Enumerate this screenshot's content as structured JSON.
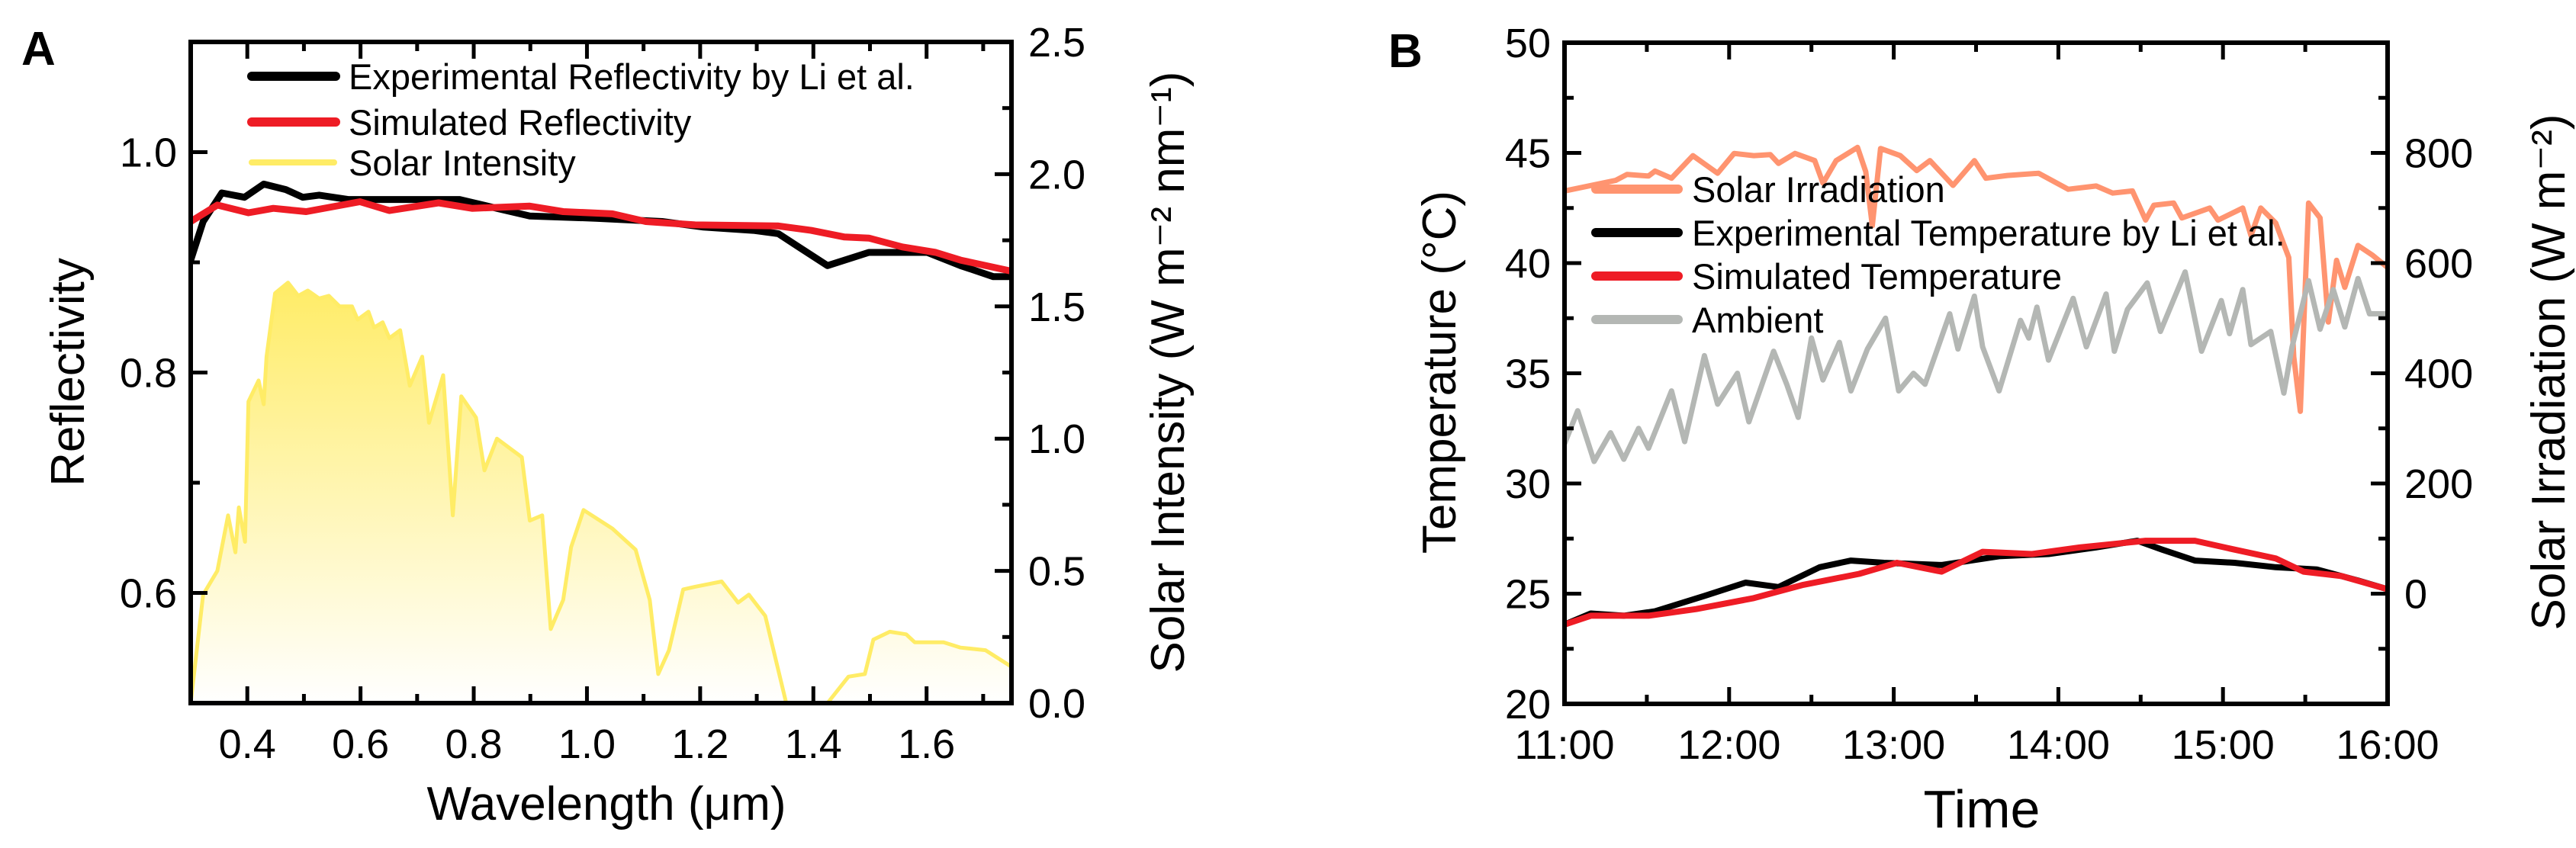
{
  "colors": {
    "experimental": "#000000",
    "simulated": "#EE1C25",
    "solar_intensity": "#FFEC66",
    "solar_irradiation": "#FF9470",
    "ambient": "#B4B7B4"
  },
  "chart_data": [
    {
      "panel": "A",
      "type": "line",
      "xlabel": "Wavelength (μm)",
      "ylabel": "Reflectivity",
      "y2label": "Solar Intensity (W m⁻² nm⁻¹)",
      "xlim": [
        0.3,
        1.75
      ],
      "ylim": [
        0.5,
        1.1
      ],
      "y2lim": [
        0,
        2.5
      ],
      "xticks": [
        0.4,
        0.6,
        0.8,
        1.0,
        1.2,
        1.4,
        1.6
      ],
      "xtick_labels": [
        "0.4",
        "0.6",
        "0.8",
        "1.0",
        "1.2",
        "1.4",
        "1.6"
      ],
      "yticks": [
        0.6,
        0.8,
        1.0
      ],
      "ytick_labels": [
        "0.6",
        "0.8",
        "1.0"
      ],
      "y2ticks": [
        0,
        0.5,
        1.0,
        1.5,
        2.0,
        2.5
      ],
      "y2tick_labels": [
        "0.0",
        "0.5",
        "1.0",
        "1.5",
        "2.0",
        "2.5"
      ],
      "legend_position": "top-left",
      "series": [
        {
          "name": "Experimental Reflectivity by Li et al.",
          "axis": "left",
          "x": [
            0.3,
            0.322,
            0.355,
            0.395,
            0.429,
            0.468,
            0.498,
            0.527,
            0.578,
            0.651,
            0.775,
            0.841,
            0.899,
            1.016,
            1.133,
            1.206,
            1.294,
            1.338,
            1.374,
            1.425,
            1.498,
            1.601,
            1.66,
            1.718,
            1.75
          ],
          "y": [
            0.902,
            0.937,
            0.963,
            0.959,
            0.971,
            0.966,
            0.959,
            0.961,
            0.957,
            0.957,
            0.957,
            0.949,
            0.942,
            0.94,
            0.937,
            0.932,
            0.929,
            0.926,
            0.914,
            0.897,
            0.909,
            0.909,
            0.897,
            0.887,
            0.887
          ]
        },
        {
          "name": "Simulated Reflectivity",
          "axis": "left",
          "x": [
            0.3,
            0.347,
            0.402,
            0.446,
            0.504,
            0.599,
            0.651,
            0.738,
            0.797,
            0.899,
            0.958,
            1.045,
            1.104,
            1.191,
            1.338,
            1.396,
            1.455,
            1.498,
            1.557,
            1.616,
            1.66,
            1.75
          ],
          "y": [
            0.937,
            0.952,
            0.945,
            0.949,
            0.946,
            0.955,
            0.947,
            0.954,
            0.949,
            0.951,
            0.946,
            0.944,
            0.937,
            0.934,
            0.933,
            0.929,
            0.923,
            0.922,
            0.914,
            0.909,
            0.902,
            0.892
          ]
        },
        {
          "name": "Solar Intensity",
          "axis": "right",
          "fill": true,
          "x": [
            0.3,
            0.322,
            0.347,
            0.366,
            0.379,
            0.385,
            0.396,
            0.402,
            0.42,
            0.429,
            0.434,
            0.449,
            0.472,
            0.49,
            0.507,
            0.527,
            0.544,
            0.563,
            0.585,
            0.595,
            0.614,
            0.624,
            0.639,
            0.651,
            0.67,
            0.687,
            0.709,
            0.721,
            0.746,
            0.763,
            0.778,
            0.804,
            0.819,
            0.841,
            0.885,
            0.899,
            0.921,
            0.936,
            0.958,
            0.972,
            0.994,
            1.045,
            1.086,
            1.111,
            1.126,
            1.145,
            1.17,
            1.191,
            1.238,
            1.267,
            1.286,
            1.315,
            1.352,
            1.425,
            1.462,
            1.491,
            1.506,
            1.535,
            1.564,
            1.579,
            1.63,
            1.66,
            1.704,
            1.748
          ],
          "y": [
            0,
            0.41,
            0.5,
            0.71,
            0.57,
            0.74,
            0.61,
            1.14,
            1.22,
            1.13,
            1.31,
            1.55,
            1.59,
            1.54,
            1.56,
            1.53,
            1.54,
            1.5,
            1.5,
            1.45,
            1.48,
            1.42,
            1.44,
            1.38,
            1.41,
            1.2,
            1.31,
            1.06,
            1.24,
            0.71,
            1.16,
            1.08,
            0.88,
            1.0,
            0.93,
            0.69,
            0.71,
            0.28,
            0.39,
            0.59,
            0.73,
            0.66,
            0.58,
            0.39,
            0.11,
            0.2,
            0.43,
            0.44,
            0.46,
            0.38,
            0.41,
            0.33,
            0,
            0,
            0.1,
            0.11,
            0.24,
            0.27,
            0.26,
            0.23,
            0.23,
            0.21,
            0.2,
            0.14
          ]
        }
      ]
    },
    {
      "panel": "B",
      "type": "line",
      "xlabel": "Time",
      "ylabel": "Temperature (°C)",
      "y2label": "Solar Irradiation (W m⁻²)",
      "xlim": [
        11,
        16
      ],
      "ylim": [
        20,
        50
      ],
      "y2lim": [
        -200,
        1000
      ],
      "xticks": [
        11,
        12,
        13,
        14,
        15,
        16
      ],
      "xtick_labels": [
        "11:00",
        "12:00",
        "13:00",
        "14:00",
        "15:00",
        "16:00"
      ],
      "yticks": [
        20,
        25,
        30,
        35,
        40,
        45,
        50
      ],
      "ytick_labels": [
        "20",
        "25",
        "30",
        "35",
        "40",
        "45",
        "50"
      ],
      "y2ticks": [
        0,
        200,
        400,
        600,
        800
      ],
      "y2tick_labels": [
        "0",
        "200",
        "400",
        "600",
        "800"
      ],
      "legend_position": "center-left",
      "series": [
        {
          "name": "Solar Irradiation",
          "axis": "right",
          "x": [
            11.0,
            11.31,
            11.38,
            11.51,
            11.55,
            11.65,
            11.78,
            11.93,
            12.03,
            12.15,
            12.25,
            12.3,
            12.4,
            12.52,
            12.57,
            12.65,
            12.78,
            12.83,
            12.87,
            12.92,
            13.04,
            13.14,
            13.22,
            13.36,
            13.49,
            13.56,
            13.69,
            13.88,
            14.06,
            14.23,
            14.33,
            14.45,
            14.53,
            14.58,
            14.7,
            14.75,
            14.92,
            14.97,
            15.12,
            15.17,
            15.23,
            15.32,
            15.4,
            15.43,
            15.47,
            15.52,
            15.59,
            15.64,
            15.69,
            15.74,
            15.82,
            15.91,
            16.0
          ],
          "y": [
            731,
            750,
            761,
            758,
            767,
            754,
            795,
            763,
            799,
            795,
            797,
            781,
            799,
            786,
            745,
            786,
            810,
            766,
            668,
            808,
            795,
            768,
            786,
            741,
            786,
            754,
            759,
            763,
            734,
            740,
            727,
            731,
            678,
            705,
            709,
            682,
            700,
            678,
            700,
            650,
            700,
            673,
            610,
            430,
            331,
            709,
            682,
            493,
            605,
            556,
            632,
            614,
            592
          ]
        },
        {
          "name": "Experimental Temperature by Li et al.",
          "axis": "left",
          "x": [
            11.0,
            11.16,
            11.36,
            11.55,
            11.85,
            12.1,
            12.3,
            12.55,
            12.74,
            12.94,
            13.29,
            13.64,
            13.94,
            14.23,
            14.48,
            14.63,
            14.83,
            15.07,
            15.32,
            15.57,
            15.82,
            16.0
          ],
          "y": [
            23.6,
            24.1,
            24.0,
            24.2,
            24.9,
            25.5,
            25.3,
            26.2,
            26.5,
            26.4,
            26.3,
            26.7,
            26.8,
            27.1,
            27.4,
            27.0,
            26.5,
            26.4,
            26.2,
            26.1,
            25.6,
            25.2
          ]
        },
        {
          "name": "Simulated Temperature",
          "axis": "left",
          "x": [
            11.0,
            11.16,
            11.51,
            11.8,
            12.15,
            12.45,
            12.79,
            13.02,
            13.29,
            13.54,
            13.84,
            14.13,
            14.53,
            14.83,
            15.07,
            15.32,
            15.49,
            15.72,
            16.0
          ],
          "y": [
            23.6,
            24.0,
            24.0,
            24.3,
            24.8,
            25.4,
            25.9,
            26.4,
            26.0,
            26.9,
            26.8,
            27.1,
            27.4,
            27.4,
            27.0,
            26.6,
            26.0,
            25.8,
            25.2
          ]
        },
        {
          "name": "Ambient",
          "axis": "left",
          "x": [
            11.0,
            11.08,
            11.18,
            11.28,
            11.36,
            11.45,
            11.51,
            11.65,
            11.73,
            11.85,
            11.93,
            12.05,
            12.12,
            12.27,
            12.35,
            12.42,
            12.5,
            12.57,
            12.67,
            12.74,
            12.84,
            12.95,
            13.03,
            13.12,
            13.19,
            13.34,
            13.39,
            13.49,
            13.54,
            13.64,
            13.77,
            13.82,
            13.87,
            13.94,
            14.09,
            14.17,
            14.29,
            14.34,
            14.42,
            14.54,
            14.62,
            14.67,
            14.77,
            14.87,
            14.99,
            15.04,
            15.12,
            15.17,
            15.29,
            15.37,
            15.42,
            15.52,
            15.59,
            15.67,
            15.74,
            15.82,
            15.89,
            16.0
          ],
          "y": [
            31.8,
            33.3,
            31.0,
            32.3,
            31.1,
            32.5,
            31.6,
            34.2,
            31.9,
            35.8,
            33.6,
            35.0,
            32.8,
            36.0,
            34.5,
            33.0,
            36.6,
            34.7,
            36.4,
            34.2,
            36.1,
            37.5,
            34.2,
            35.0,
            34.5,
            37.7,
            36.1,
            38.5,
            36.2,
            34.2,
            37.4,
            36.6,
            38.0,
            35.6,
            38.4,
            36.2,
            38.6,
            36.0,
            37.9,
            39.1,
            36.9,
            37.8,
            39.6,
            36.0,
            38.3,
            36.8,
            38.8,
            36.3,
            36.9,
            34.1,
            36.2,
            39.2,
            37.0,
            38.8,
            37.1,
            39.3,
            37.7,
            37.7
          ]
        }
      ]
    }
  ]
}
